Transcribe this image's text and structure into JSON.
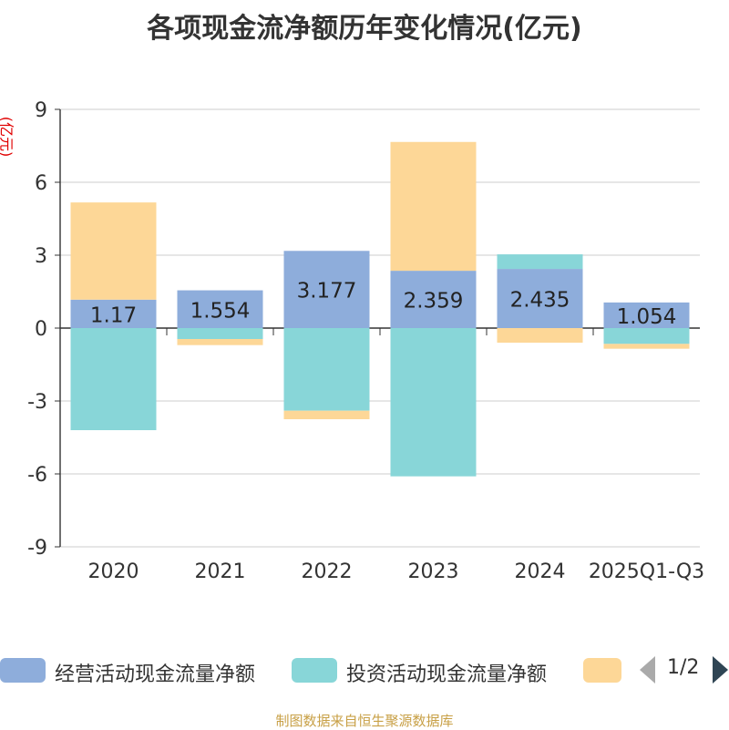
{
  "chart_data": {
    "type": "bar",
    "title": "各项现金流净额历年变化情况(亿元)",
    "ylabel": "(亿元)",
    "xlabel": "",
    "ylim": [
      -9,
      9
    ],
    "yticks": [
      9,
      6,
      3,
      0,
      -3,
      -6,
      -9
    ],
    "yticklabels": [
      "9",
      "6",
      "3",
      "0",
      "-3",
      "-6",
      "-9"
    ],
    "stacked": true,
    "categories": [
      "2020",
      "2021",
      "2022",
      "2023",
      "2024",
      "2025Q1-Q3"
    ],
    "series": [
      {
        "name": "经营活动现金流量净额",
        "color": "#8eaddb",
        "values": [
          1.17,
          1.554,
          3.177,
          2.359,
          2.435,
          1.054
        ],
        "labels": [
          "1.17",
          "1.554",
          "3.177",
          "2.359",
          "2.435",
          "1.054"
        ]
      },
      {
        "name": "投资活动现金流量净额",
        "color": "#88d6d8",
        "values": [
          -4.2,
          -0.45,
          -3.4,
          -6.1,
          0.6,
          -0.65
        ]
      },
      {
        "name": "",
        "color": "#fdd797",
        "values": [
          4.0,
          -0.25,
          -0.35,
          5.3,
          -0.6,
          -0.2
        ]
      }
    ]
  },
  "legend": {
    "items": [
      {
        "label": "经营活动现金流量净额",
        "color": "#8eaddb"
      },
      {
        "label": "投资活动现金流量净额",
        "color": "#88d6d8"
      },
      {
        "label": "",
        "color": "#fdd797"
      }
    ],
    "page": "1/2"
  },
  "source": "制图数据来自恒生聚源数据库"
}
